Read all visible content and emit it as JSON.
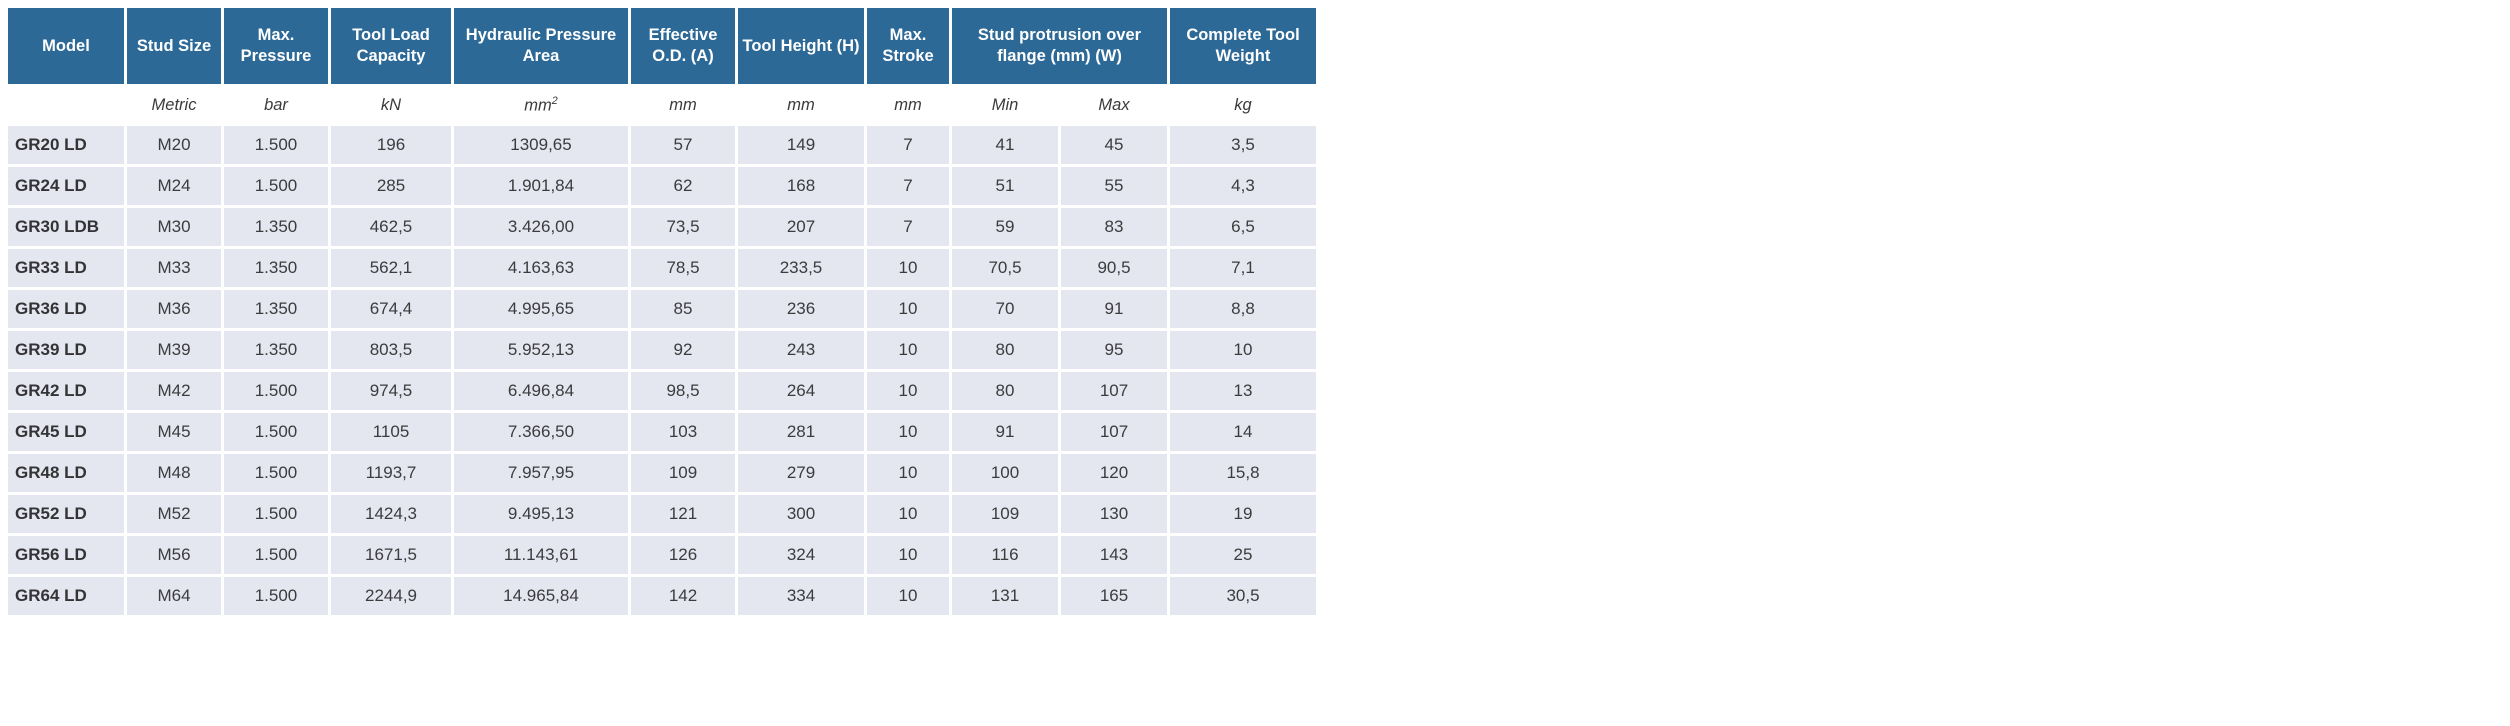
{
  "colors": {
    "header_bg": "#2d6996",
    "header_text": "#ffffff",
    "cell_bg": "#e4e6f0",
    "cell_text": "#3c3c3e",
    "page_bg": "#ffffff"
  },
  "table": {
    "headers": [
      {
        "label": "Model",
        "colspan": 1
      },
      {
        "label": "Stud Size",
        "colspan": 1
      },
      {
        "label": "Max. Pressure",
        "colspan": 1
      },
      {
        "label": "Tool Load Capacity",
        "colspan": 1
      },
      {
        "label": "Hydraulic Pressure Area",
        "colspan": 1
      },
      {
        "label": "Effective O.D. (A)",
        "colspan": 1
      },
      {
        "label": "Tool Height (H)",
        "colspan": 1
      },
      {
        "label": "Max. Stroke",
        "colspan": 1
      },
      {
        "label": "Stud protrusion over flange (mm) (W)",
        "colspan": 2
      },
      {
        "label": "Complete Tool Weight",
        "colspan": 1
      }
    ],
    "units": [
      "",
      "Metric",
      "bar",
      "kN",
      "mm²",
      "mm",
      "mm",
      "mm",
      "Min",
      "Max",
      "kg"
    ],
    "rows": [
      [
        "GR20 LD",
        "M20",
        "1.500",
        "196",
        "1309,65",
        "57",
        "149",
        "7",
        "41",
        "45",
        "3,5"
      ],
      [
        "GR24 LD",
        "M24",
        "1.500",
        "285",
        "1.901,84",
        "62",
        "168",
        "7",
        "51",
        "55",
        "4,3"
      ],
      [
        "GR30 LDB",
        "M30",
        "1.350",
        "462,5",
        "3.426,00",
        "73,5",
        "207",
        "7",
        "59",
        "83",
        "6,5"
      ],
      [
        "GR33 LD",
        "M33",
        "1.350",
        "562,1",
        "4.163,63",
        "78,5",
        "233,5",
        "10",
        "70,5",
        "90,5",
        "7,1"
      ],
      [
        "GR36 LD",
        "M36",
        "1.350",
        "674,4",
        "4.995,65",
        "85",
        "236",
        "10",
        "70",
        "91",
        "8,8"
      ],
      [
        "GR39 LD",
        "M39",
        "1.350",
        "803,5",
        "5.952,13",
        "92",
        "243",
        "10",
        "80",
        "95",
        "10"
      ],
      [
        "GR42 LD",
        "M42",
        "1.500",
        "974,5",
        "6.496,84",
        "98,5",
        "264",
        "10",
        "80",
        "107",
        "13"
      ],
      [
        "GR45 LD",
        "M45",
        "1.500",
        "1105",
        "7.366,50",
        "103",
        "281",
        "10",
        "91",
        "107",
        "14"
      ],
      [
        "GR48 LD",
        "M48",
        "1.500",
        "1193,7",
        "7.957,95",
        "109",
        "279",
        "10",
        "100",
        "120",
        "15,8"
      ],
      [
        "GR52 LD",
        "M52",
        "1.500",
        "1424,3",
        "9.495,13",
        "121",
        "300",
        "10",
        "109",
        "130",
        "19"
      ],
      [
        "GR56 LD",
        "M56",
        "1.500",
        "1671,5",
        "11.143,61",
        "126",
        "324",
        "10",
        "116",
        "143",
        "25"
      ],
      [
        "GR64 LD",
        "M64",
        "1.500",
        "2244,9",
        "14.965,84",
        "142",
        "334",
        "10",
        "131",
        "165",
        "30,5"
      ]
    ]
  }
}
